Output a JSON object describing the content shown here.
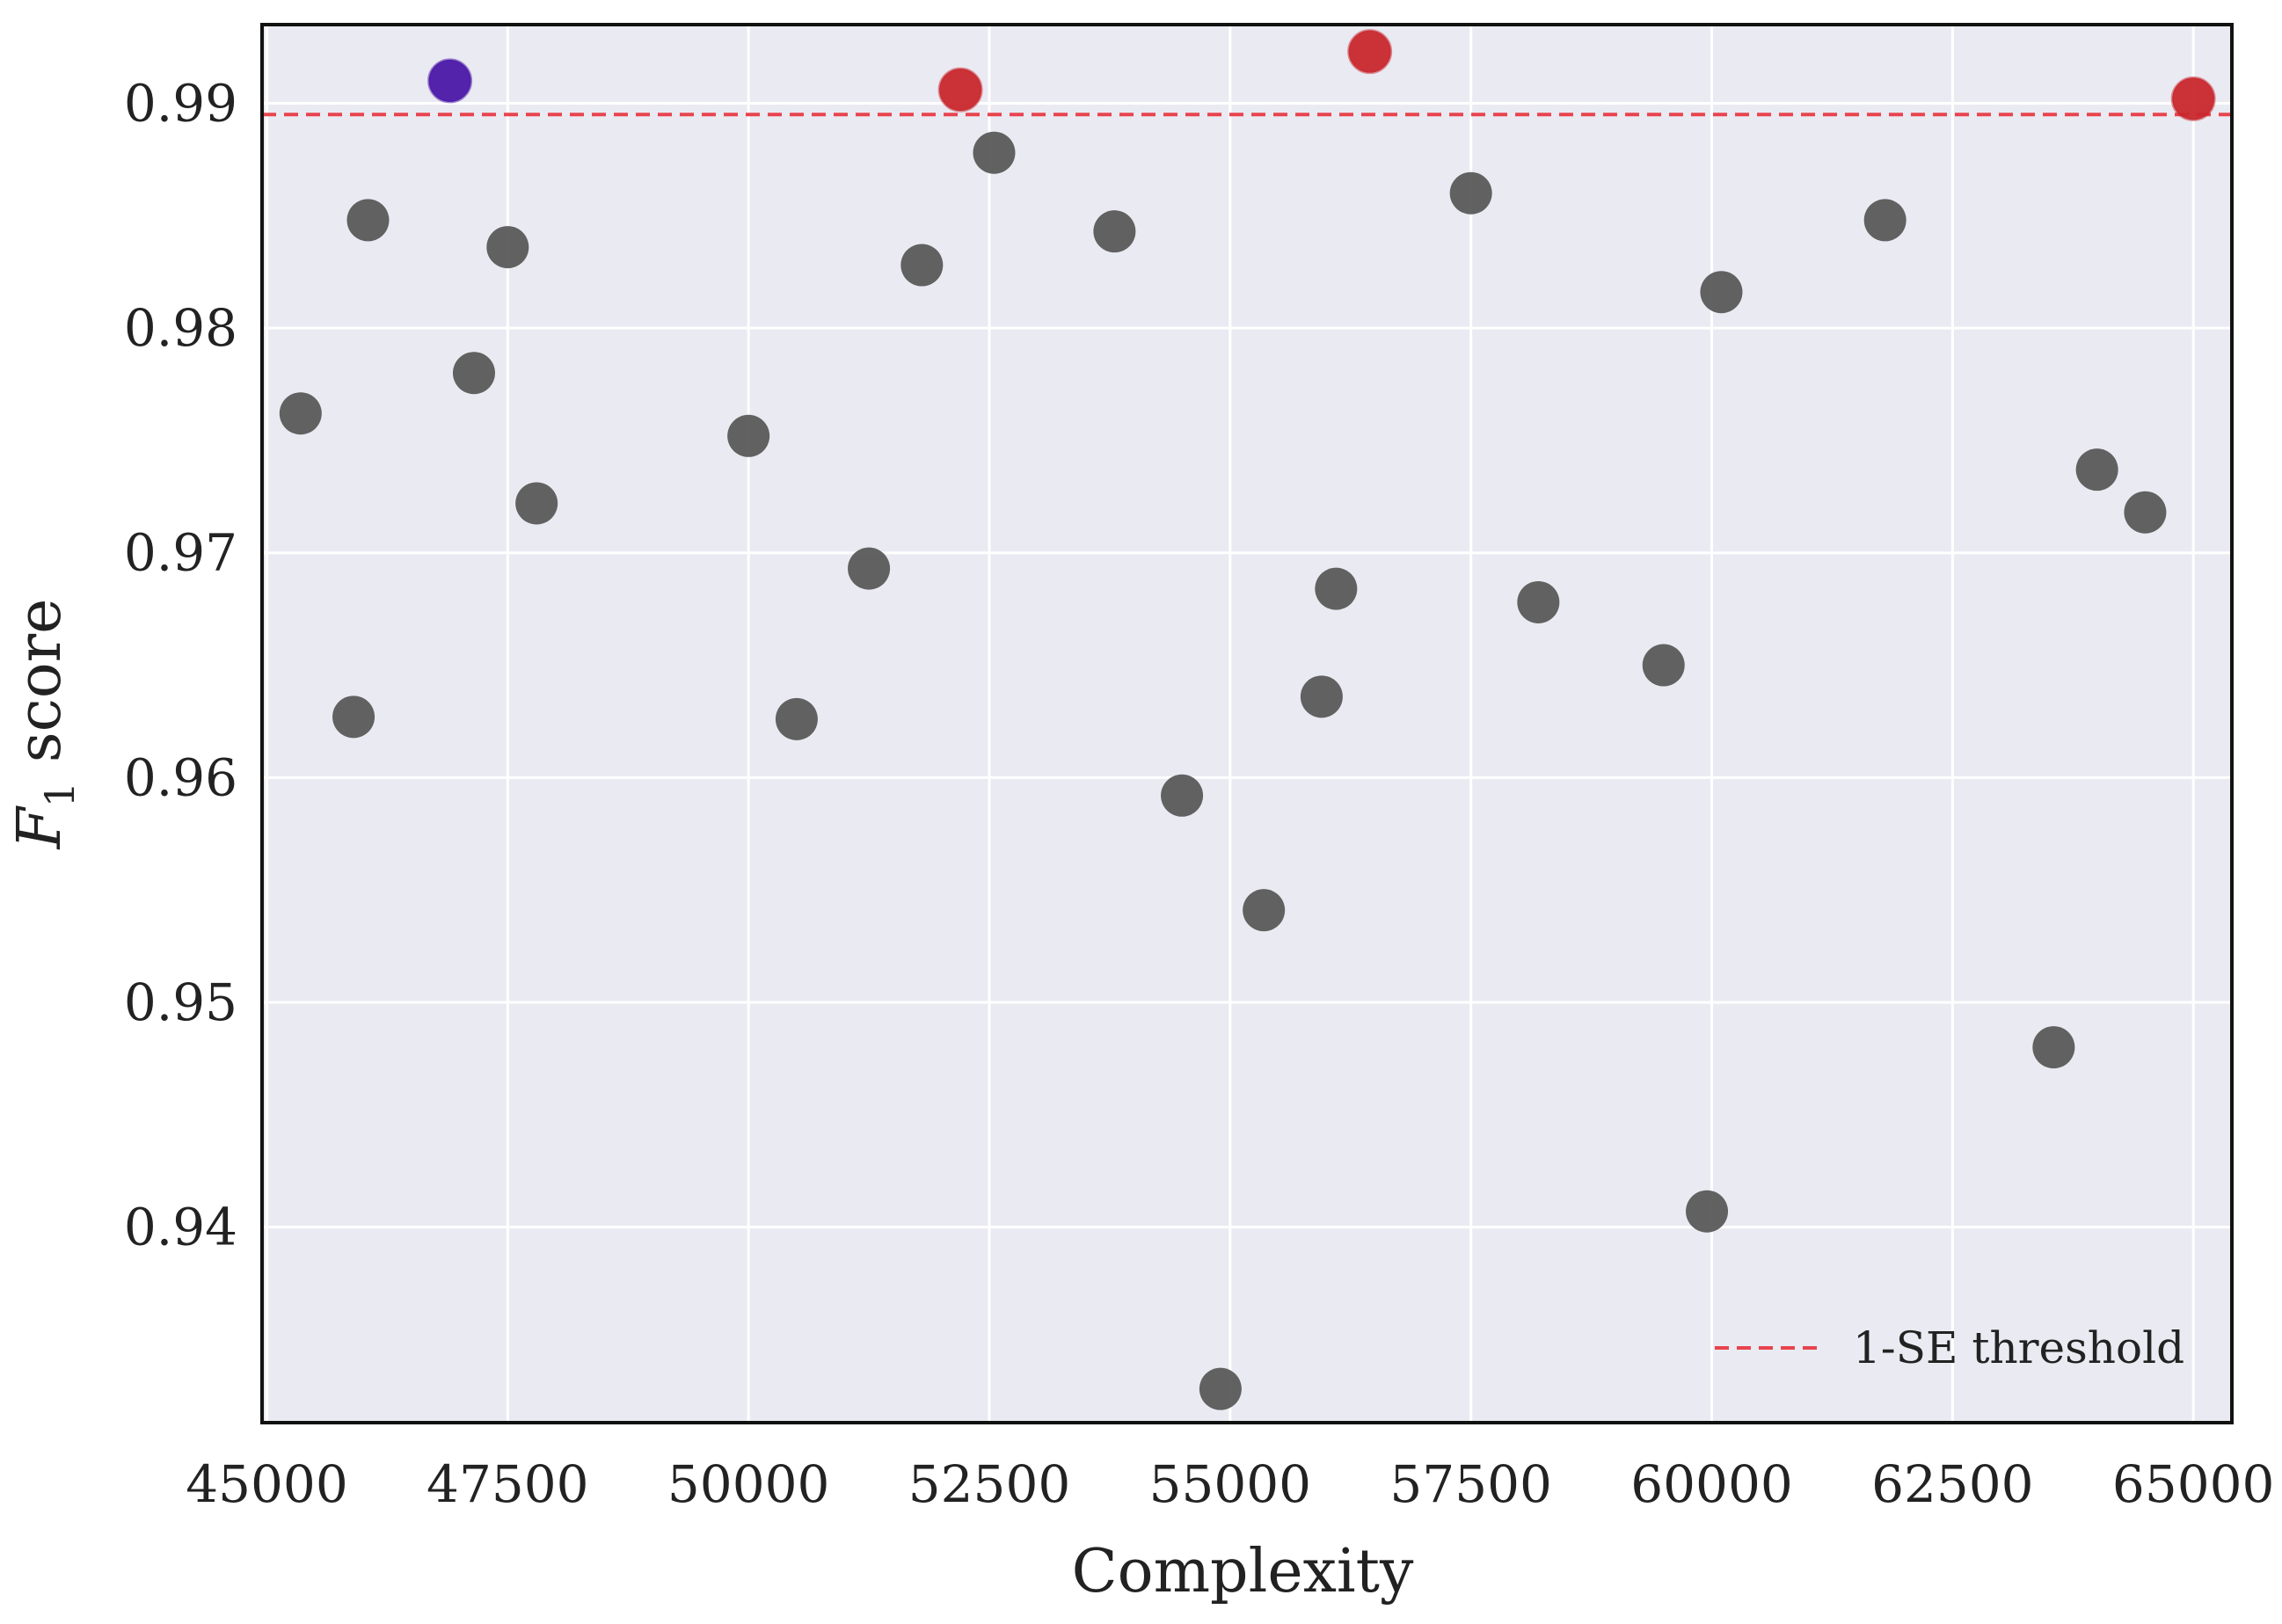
{
  "chart_data": {
    "type": "scatter",
    "title": "",
    "xlabel": "Complexity",
    "ylabel_main": "F",
    "ylabel_sub": "1",
    "ylabel_rest": " score",
    "xlim": [
      44950,
      65400
    ],
    "ylim": [
      0.9313,
      0.9935
    ],
    "xticks": [
      45000,
      47500,
      50000,
      52500,
      55000,
      57500,
      60000,
      62500,
      65000
    ],
    "xtick_labels": [
      "45000",
      "47500",
      "50000",
      "52500",
      "55000",
      "57500",
      "60000",
      "62500",
      "65000"
    ],
    "yticks": [
      0.94,
      0.95,
      0.96,
      0.97,
      0.98,
      0.99
    ],
    "ytick_labels": [
      "0.94",
      "0.95",
      "0.96",
      "0.97",
      "0.98",
      "0.99"
    ],
    "grid": true,
    "threshold": {
      "y": 0.9895,
      "label": "1-SE threshold",
      "color": "#e8444e"
    },
    "legend_position": "bottom-right",
    "colors": {
      "background": "#eaeaf2",
      "grid": "#ffffff",
      "default_point": "#555555",
      "highlight_point": "#c8282d",
      "selected_point": "#4b18a8"
    },
    "points": [
      {
        "x": 45350,
        "y": 0.9762,
        "group": "default"
      },
      {
        "x": 45900,
        "y": 0.9627,
        "group": "default"
      },
      {
        "x": 46050,
        "y": 0.9848,
        "group": "default"
      },
      {
        "x": 46900,
        "y": 0.991,
        "group": "selected"
      },
      {
        "x": 47150,
        "y": 0.978,
        "group": "default"
      },
      {
        "x": 47500,
        "y": 0.9836,
        "group": "default"
      },
      {
        "x": 47800,
        "y": 0.9722,
        "group": "default"
      },
      {
        "x": 50000,
        "y": 0.9752,
        "group": "default"
      },
      {
        "x": 50500,
        "y": 0.9626,
        "group": "default"
      },
      {
        "x": 51250,
        "y": 0.9693,
        "group": "default"
      },
      {
        "x": 51800,
        "y": 0.9828,
        "group": "default"
      },
      {
        "x": 52200,
        "y": 0.9906,
        "group": "highlight"
      },
      {
        "x": 52550,
        "y": 0.9878,
        "group": "default"
      },
      {
        "x": 53800,
        "y": 0.9843,
        "group": "default"
      },
      {
        "x": 54500,
        "y": 0.9592,
        "group": "default"
      },
      {
        "x": 54900,
        "y": 0.9328,
        "group": "default"
      },
      {
        "x": 55350,
        "y": 0.9541,
        "group": "default"
      },
      {
        "x": 55950,
        "y": 0.9636,
        "group": "default"
      },
      {
        "x": 56100,
        "y": 0.9684,
        "group": "default"
      },
      {
        "x": 56450,
        "y": 0.9923,
        "group": "highlight"
      },
      {
        "x": 57500,
        "y": 0.986,
        "group": "default"
      },
      {
        "x": 58200,
        "y": 0.9678,
        "group": "default"
      },
      {
        "x": 59500,
        "y": 0.965,
        "group": "default"
      },
      {
        "x": 59950,
        "y": 0.9407,
        "group": "default"
      },
      {
        "x": 60100,
        "y": 0.9816,
        "group": "default"
      },
      {
        "x": 61800,
        "y": 0.9848,
        "group": "default"
      },
      {
        "x": 63550,
        "y": 0.948,
        "group": "default"
      },
      {
        "x": 64000,
        "y": 0.9737,
        "group": "default"
      },
      {
        "x": 64500,
        "y": 0.9718,
        "group": "default"
      },
      {
        "x": 65000,
        "y": 0.9902,
        "group": "highlight"
      }
    ]
  }
}
